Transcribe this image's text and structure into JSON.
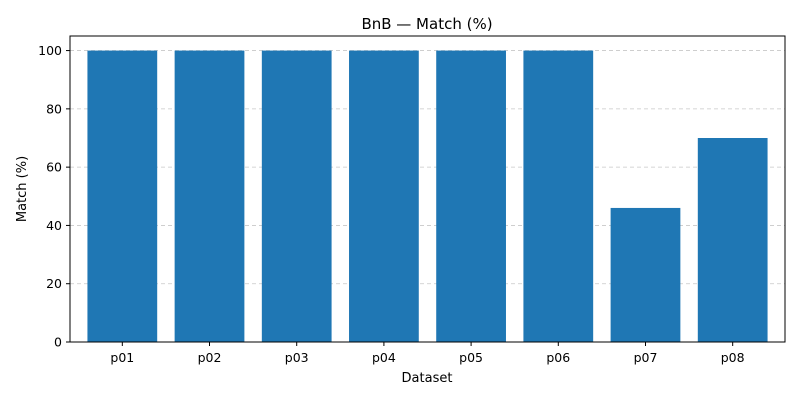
{
  "chart_data": {
    "type": "bar",
    "title": "BnB — Match (%)",
    "xlabel": "Dataset",
    "ylabel": "Match (%)",
    "categories": [
      "p01",
      "p02",
      "p03",
      "p04",
      "p05",
      "p06",
      "p07",
      "p08"
    ],
    "values": [
      100,
      100,
      100,
      100,
      100,
      100,
      46,
      70
    ],
    "ylim": [
      0,
      105
    ],
    "yticks": [
      0,
      20,
      40,
      60,
      80,
      100
    ],
    "grid": "y-dashed",
    "bar_color": "#1f77b4"
  }
}
